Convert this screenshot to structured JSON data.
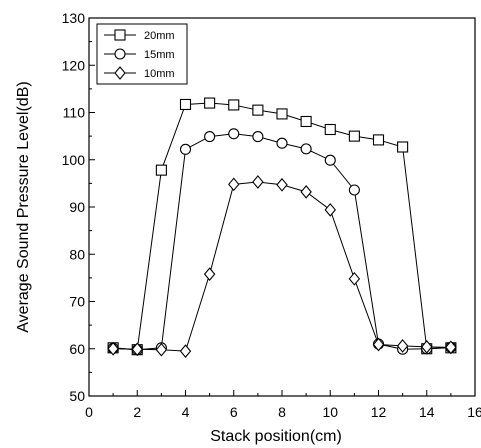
{
  "chart_data": {
    "type": "line",
    "title": "",
    "xlabel": "Stack position(cm)",
    "ylabel": "Average Sound Pressure Level(dB)",
    "xlim": [
      0,
      16
    ],
    "ylim": [
      50,
      130
    ],
    "xticks": [
      0,
      2,
      4,
      6,
      8,
      10,
      12,
      14,
      16
    ],
    "yticks": [
      50,
      60,
      70,
      80,
      90,
      100,
      110,
      120,
      130
    ],
    "grid": false,
    "legend_position": "top-left",
    "x": [
      1,
      2,
      3,
      4,
      5,
      6,
      7,
      8,
      9,
      10,
      11,
      12,
      13,
      14,
      15
    ],
    "series": [
      {
        "name": "20mm",
        "marker": "square",
        "values": [
          60.2,
          59.8,
          97.8,
          111.7,
          112.0,
          111.6,
          110.5,
          109.7,
          108.1,
          106.4,
          105.0,
          104.2,
          102.7,
          60.0,
          60.2
        ]
      },
      {
        "name": "15mm",
        "marker": "circle",
        "values": [
          60.1,
          59.8,
          60.2,
          102.2,
          104.9,
          105.5,
          104.9,
          103.5,
          102.3,
          99.9,
          93.6,
          61.0,
          59.9,
          60.0,
          60.3
        ]
      },
      {
        "name": "10mm",
        "marker": "diamond",
        "values": [
          60.0,
          59.9,
          59.8,
          59.5,
          75.8,
          94.8,
          95.3,
          94.7,
          93.2,
          89.4,
          74.8,
          60.9,
          60.6,
          60.4,
          60.3
        ]
      }
    ]
  }
}
